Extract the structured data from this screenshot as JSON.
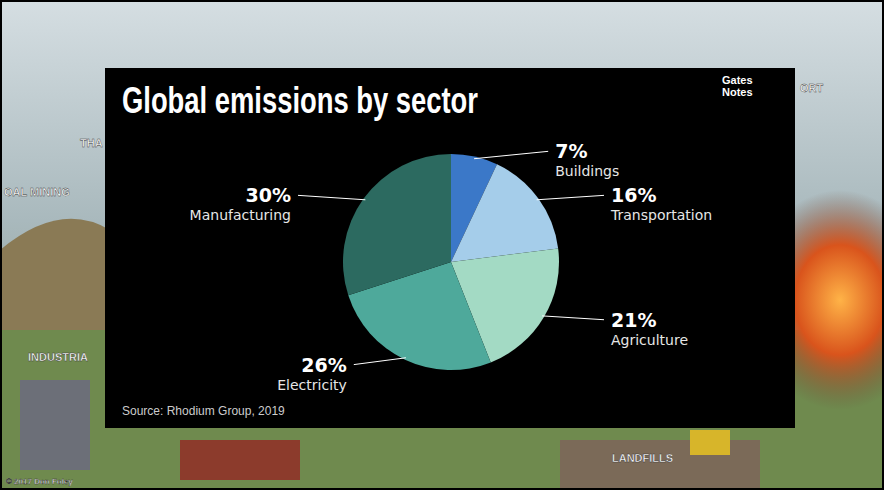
{
  "chart_data": {
    "type": "pie",
    "title": "Global emissions by sector",
    "categories": [
      "Buildings",
      "Transportation",
      "Agriculture",
      "Electricity",
      "Manufacturing"
    ],
    "values": [
      7,
      16,
      21,
      26,
      30
    ],
    "value_labels": [
      "7%",
      "16%",
      "21%",
      "26%",
      "30%"
    ],
    "colors": [
      "#3b78c8",
      "#a5cdea",
      "#a3dac4",
      "#4ea99b",
      "#2c6a60"
    ],
    "data_labels": true,
    "source": "Source: Rhodium Group, 2019",
    "brand": "Gates Notes"
  },
  "background": {
    "labels": [
      "THA",
      "OAL MINING",
      "INDUSTRIA",
      "LANDFILLS",
      "ORT",
      "© 2017 Don Foley"
    ]
  }
}
